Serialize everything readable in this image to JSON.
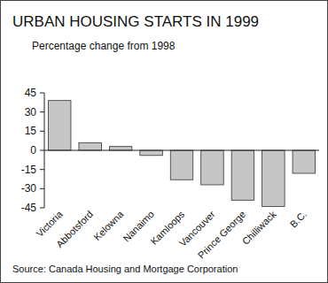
{
  "chart_data": {
    "type": "bar",
    "title": "URBAN HOUSING STARTS IN 1999",
    "subtitle": "Percentage change from 1998",
    "categories": [
      "Victoria",
      "Abbotsford",
      "Kelowna",
      "Nanaimo",
      "Kamloops",
      "Vancouver",
      "Prince George",
      "Chilliwack",
      "B.C."
    ],
    "values": [
      39,
      6,
      3,
      -4,
      -23,
      -27,
      -39,
      -44,
      -18
    ],
    "color": "#c6c6c6",
    "ylim": [
      -45,
      45
    ],
    "yticks": [
      -45,
      -30,
      -15,
      0,
      15,
      30,
      45
    ],
    "grid": false,
    "source": "Source: Canada Housing and Mortgage Corporation"
  }
}
